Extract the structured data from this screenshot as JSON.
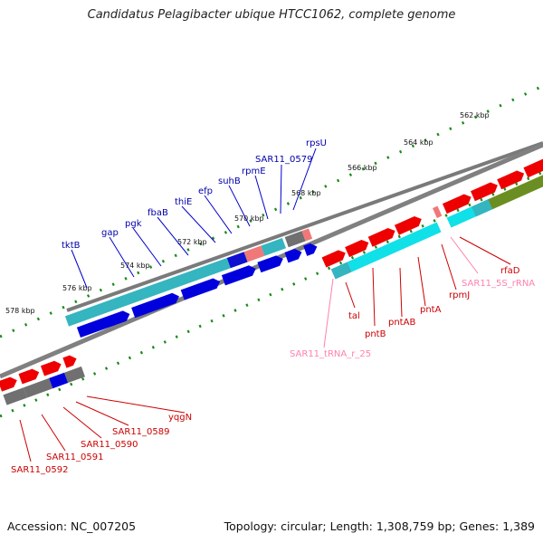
{
  "title": "Candidatus Pelagibacter ubique HTCC1062, complete genome",
  "accession": "Accession: NC_007205",
  "topology": "Topology: circular; Length: 1,308,759 bp; Genes: 1,389",
  "colors": {
    "backbone": "#808080",
    "tick": "#1a8a1a",
    "cds_red": "#ff0000",
    "cds_blue": "#0000ee",
    "rrna_cyan": "#10d8e0",
    "teal": "#35b5bf",
    "olive": "#6b8e23",
    "grey_gene": "#707070",
    "pink": "#ff8080",
    "label_blue": "#0000aa",
    "label_red": "#cc0000",
    "label_pink": "#ff80b0"
  },
  "ticks": [
    "562 kbp",
    "564 kbp",
    "566 kbp",
    "568 kbp",
    "570 kbp",
    "572 kbp",
    "574 kbp",
    "576 kbp",
    "578 kbp"
  ],
  "labels_top": [
    "tktB",
    "gap",
    "pgk",
    "fbaB",
    "thiE",
    "efp",
    "suhB",
    "rpmE",
    "SAR11_0579",
    "rpsU"
  ],
  "labels_right": [
    "tal",
    "pntB",
    "pntAB",
    "pntA",
    "rpmJ",
    "rfaD"
  ],
  "labels_pink": [
    "SAR11_tRNA_r_25",
    "SAR11_5S_rRNA"
  ],
  "labels_bottom": [
    "SAR11_0592",
    "SAR11_0591",
    "SAR11_0590",
    "SAR11_0589",
    "yqgN"
  ]
}
